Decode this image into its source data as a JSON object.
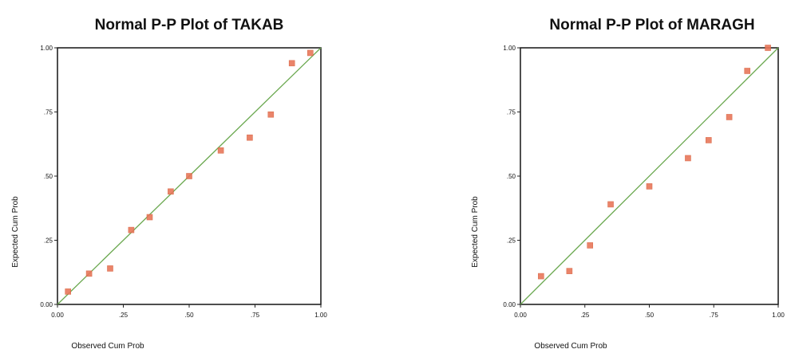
{
  "chart_data": [
    {
      "type": "scatter",
      "title": "Normal P-P Plot of TAKAB",
      "xlabel": "Observed Cum Prob",
      "ylabel": "Expected Cum Prob",
      "xlim": [
        0,
        1
      ],
      "ylim": [
        0,
        1
      ],
      "xticks": [
        "0.00",
        ".25",
        ".50",
        ".75",
        "1.00"
      ],
      "yticks": [
        "0.00",
        ".25",
        ".50",
        ".75",
        "1.00"
      ],
      "reference_line": {
        "from": [
          0,
          0
        ],
        "to": [
          1,
          1
        ],
        "color": "#6aa84f"
      },
      "marker_color": "#e8775a",
      "points": {
        "x": [
          0.04,
          0.12,
          0.2,
          0.28,
          0.35,
          0.43,
          0.5,
          0.62,
          0.73,
          0.81,
          0.89,
          0.96
        ],
        "y": [
          0.05,
          0.12,
          0.14,
          0.29,
          0.34,
          0.44,
          0.5,
          0.6,
          0.65,
          0.74,
          0.94,
          0.98
        ]
      }
    },
    {
      "type": "scatter",
      "title": "Normal P-P Plot of MARAGH",
      "xlabel": "Observed Cum Prob",
      "ylabel": "Expected Cum Prob",
      "xlim": [
        0,
        1
      ],
      "ylim": [
        0,
        1
      ],
      "xticks": [
        "0.00",
        ".25",
        ".50",
        ".75",
        "1.00"
      ],
      "yticks": [
        "0.00",
        ".25",
        ".50",
        ".75",
        "1.00"
      ],
      "reference_line": {
        "from": [
          0,
          0
        ],
        "to": [
          1,
          1
        ],
        "color": "#6aa84f"
      },
      "marker_color": "#e8775a",
      "points": {
        "x": [
          0.08,
          0.19,
          0.27,
          0.35,
          0.5,
          0.65,
          0.73,
          0.81,
          0.88,
          0.96
        ],
        "y": [
          0.11,
          0.13,
          0.23,
          0.39,
          0.46,
          0.57,
          0.64,
          0.73,
          0.91,
          1.0
        ]
      }
    }
  ]
}
